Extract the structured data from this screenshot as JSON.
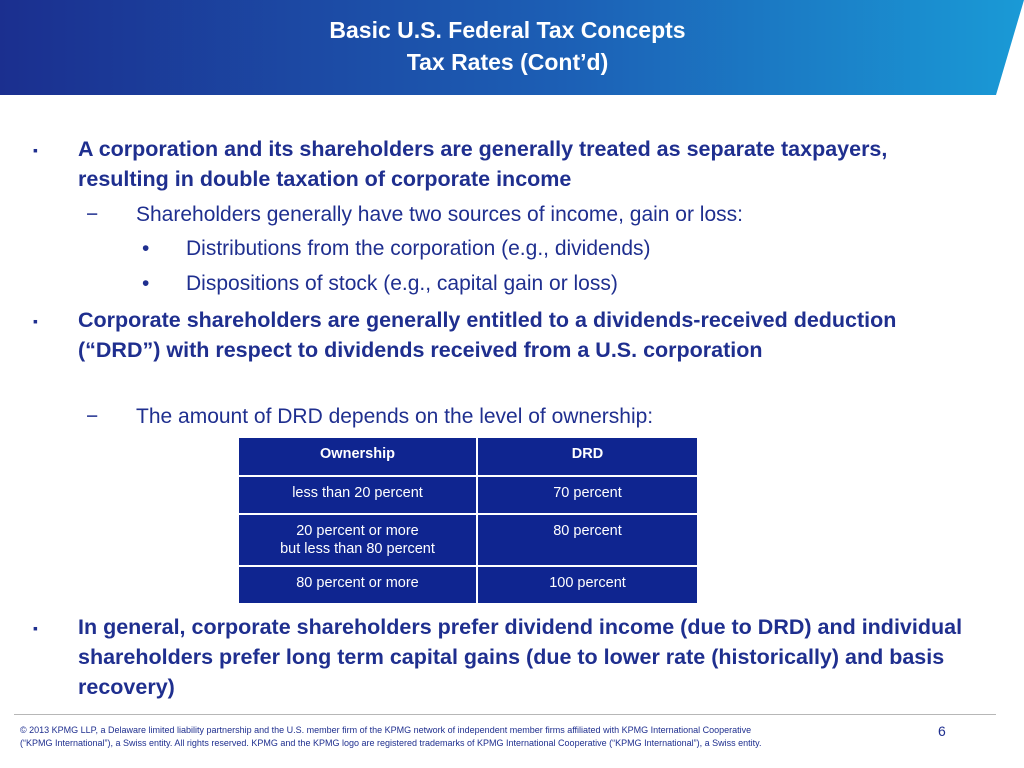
{
  "header": {
    "title_line1": "Basic U.S. Federal Tax Concepts",
    "title_line2": "Tax Rates (Cont’d)"
  },
  "colors": {
    "header_dark": "#1b2f8f",
    "header_light": "#1a9ad6",
    "text_blue": "#1f2f8f",
    "table_fill": "#0f2590"
  },
  "markers": {
    "level1": "▪",
    "level2": "−",
    "level3": "•"
  },
  "bullets": {
    "b1": "A corporation and its shareholders are generally treated as separate taxpayers, resulting in double taxation of corporate income",
    "b1_sub": "Shareholders generally have two sources of income, gain or loss:",
    "b1_sub_item1": "Distributions from the corporation (e.g., dividends)",
    "b1_sub_item2": "Dispositions of stock (e.g., capital gain or loss)",
    "b2": "Corporate shareholders are generally entitled to a dividends-received deduction (“DRD”) with respect to dividends received from a U.S. corporation",
    "b2_sub": "The amount of DRD depends on the level of ownership:",
    "b3": "In general, corporate shareholders prefer dividend income (due to DRD) and individual shareholders prefer long term capital gains (due to lower rate (historically) and basis recovery)"
  },
  "table": {
    "headers": [
      "Ownership",
      "DRD"
    ],
    "rows": [
      {
        "ownership": "less than 20 percent",
        "drd": "70 percent"
      },
      {
        "ownership": "20 percent or more",
        "ownership_line2": "but less than 80 percent",
        "drd": "80 percent"
      },
      {
        "ownership": "80 percent or more",
        "drd": "100 percent"
      }
    ]
  },
  "footer": {
    "line1": "© 2013 KPMG LLP, a Delaware limited liability partnership and the U.S. member firm of the KPMG network of independent member firms affiliated with KPMG International Cooperative",
    "line2": "(“KPMG International”), a Swiss entity. All rights reserved. KPMG and the KPMG logo are registered trademarks of KPMG International Cooperative (“KPMG International”), a Swiss entity.",
    "page_number": "6"
  }
}
